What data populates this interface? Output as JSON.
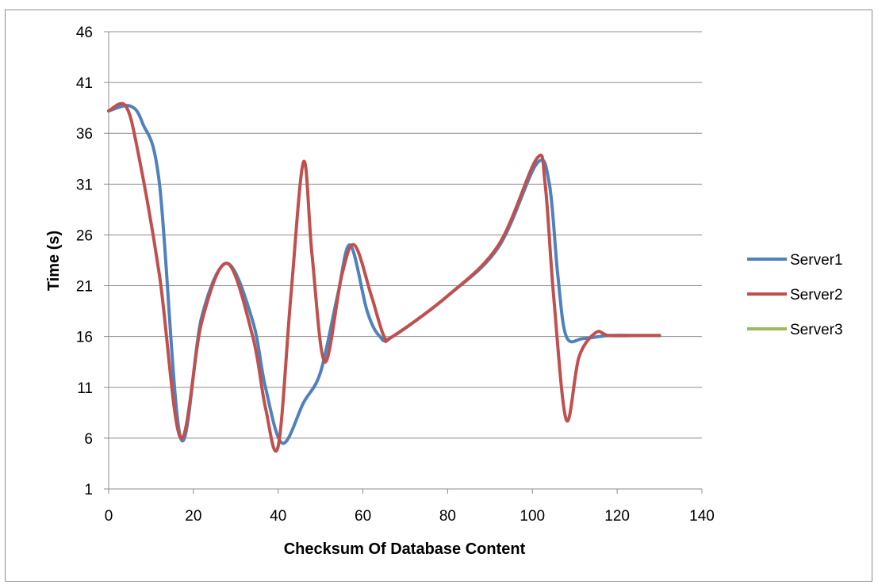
{
  "chart_data": {
    "type": "line",
    "title": "",
    "xlabel": "Checksum Of Database Content",
    "ylabel": "Time (s)",
    "xlim": [
      0,
      140
    ],
    "ylim": [
      1,
      46
    ],
    "x_ticks": [
      0,
      20,
      40,
      60,
      80,
      100,
      120,
      140
    ],
    "y_ticks": [
      1,
      6,
      11,
      16,
      21,
      26,
      31,
      36,
      41,
      46
    ],
    "grid": "horizontal",
    "legend_position": "right",
    "series": [
      {
        "name": "Server1",
        "color": "#4f81bd",
        "x": [
          0,
          5,
          8,
          12,
          17,
          22,
          28,
          34,
          37,
          41,
          46,
          50,
          54,
          57,
          61,
          64,
          67,
          80,
          92,
          101,
          104,
          106,
          108,
          112,
          118,
          125,
          130
        ],
        "y": [
          38.2,
          38.7,
          37.0,
          31.0,
          6.0,
          18.0,
          23.2,
          17.5,
          11.0,
          5.5,
          9.5,
          12.5,
          20.0,
          25.0,
          18.5,
          16.0,
          16.0,
          20.0,
          24.8,
          33.0,
          31.0,
          22.0,
          16.0,
          15.8,
          16.1,
          16.1,
          16.1
        ]
      },
      {
        "name": "Server2",
        "color": "#c0504d",
        "x": [
          0,
          4,
          7,
          12,
          17,
          22,
          28,
          34,
          37,
          40,
          43,
          46,
          48,
          51,
          55,
          58,
          62,
          65,
          67,
          80,
          92,
          101,
          103,
          105,
          108,
          111,
          115,
          118,
          125,
          130
        ],
        "y": [
          38.2,
          38.7,
          34.0,
          22.0,
          6.0,
          17.5,
          23.2,
          16.0,
          9.0,
          5.2,
          20.0,
          33.2,
          24.0,
          13.5,
          22.0,
          25.0,
          20.0,
          16.0,
          16.0,
          20.0,
          25.0,
          33.5,
          31.0,
          20.0,
          7.8,
          14.0,
          16.4,
          16.1,
          16.1,
          16.1
        ]
      },
      {
        "name": "Server3",
        "color": "#9bbb59",
        "x": [],
        "y": []
      }
    ]
  }
}
